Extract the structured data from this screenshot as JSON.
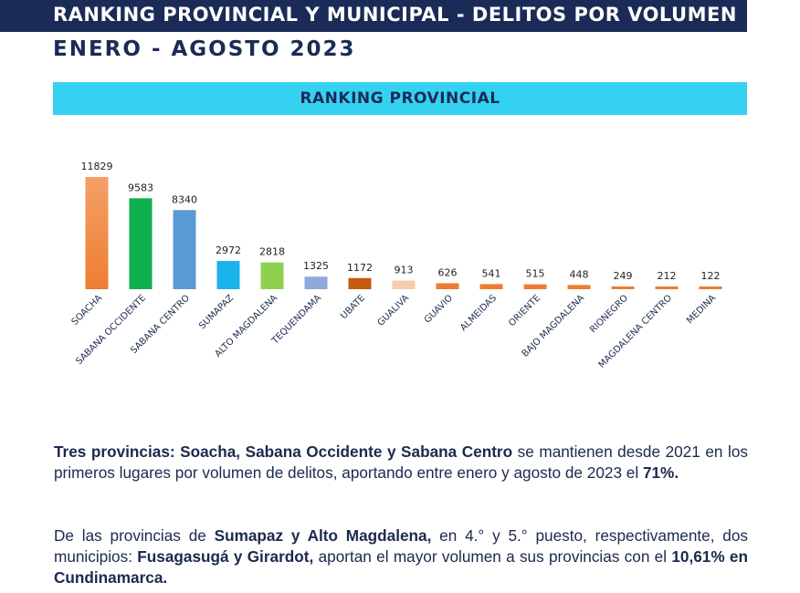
{
  "header": {
    "title": "RANKING PROVINCIAL Y MUNICIPAL - DELITOS POR VOLUMEN",
    "subtitle": "ENERO - AGOSTO 2023",
    "section_title": "RANKING PROVINCIAL"
  },
  "chart_data": {
    "type": "bar",
    "categories": [
      "SOACHA",
      "SABANA OCCIDENTE",
      "SABANA CENTRO",
      "SUMAPAZ",
      "ALTO MAGDALENA",
      "TEQUENDAMA",
      "UBATE",
      "GUALIVA",
      "GUAVIO",
      "ALMEIDAS",
      "ORIENTE",
      "BAJO MAGDALENA",
      "RIONEGRO",
      "MAGDALENA CENTRO",
      "MEDINA"
    ],
    "values": [
      11829,
      9583,
      8340,
      2972,
      2818,
      1325,
      1172,
      913,
      626,
      541,
      515,
      448,
      249,
      212,
      122
    ],
    "value_labels": [
      "11829",
      "9583",
      "8340",
      "2972",
      "2818",
      "1325",
      "1172",
      "913",
      "626",
      "541",
      "515",
      "448",
      "249",
      "212",
      "122"
    ],
    "colors": [
      "#ee7d2f",
      "#0fb04e",
      "#5b9bd5",
      "#1ab2ea",
      "#8fd14f",
      "#8eaadb",
      "#c55a11",
      "#f8cbad",
      "#ed7d31",
      "#ed7d31",
      "#ed7d31",
      "#ed7d31",
      "#ed7d31",
      "#ed7d31",
      "#ed7d31"
    ],
    "gradient_top_colors": [
      "#f4a06a",
      null,
      null,
      null,
      null,
      null,
      null,
      null,
      null,
      null,
      null,
      null,
      null,
      null,
      null
    ],
    "title": "",
    "xlabel": "",
    "ylabel": "",
    "ylim": [
      0,
      12000
    ],
    "grid": false,
    "legend": "none"
  },
  "paragraphs": {
    "p1": {
      "bold": "Tres provincias: Soacha, Sabana Occidente y Sabana Centro",
      "text1": " se mantienen desde 2021 en los primeros lugares por volumen de delitos, aportando entre enero y agosto de 2023 el ",
      "pct": "71%."
    },
    "p2": {
      "text1": "De las provincias de ",
      "bold1": "Sumapaz y Alto Magdalena,",
      "text2": " en 4.° y 5.° puesto, respectivamente, dos municipios: ",
      "bold2": "Fusagasugá y Girardot,",
      "text3": " aportan el mayor volumen a sus provincias con el ",
      "bold3": "10,61% en Cundinamarca."
    }
  }
}
